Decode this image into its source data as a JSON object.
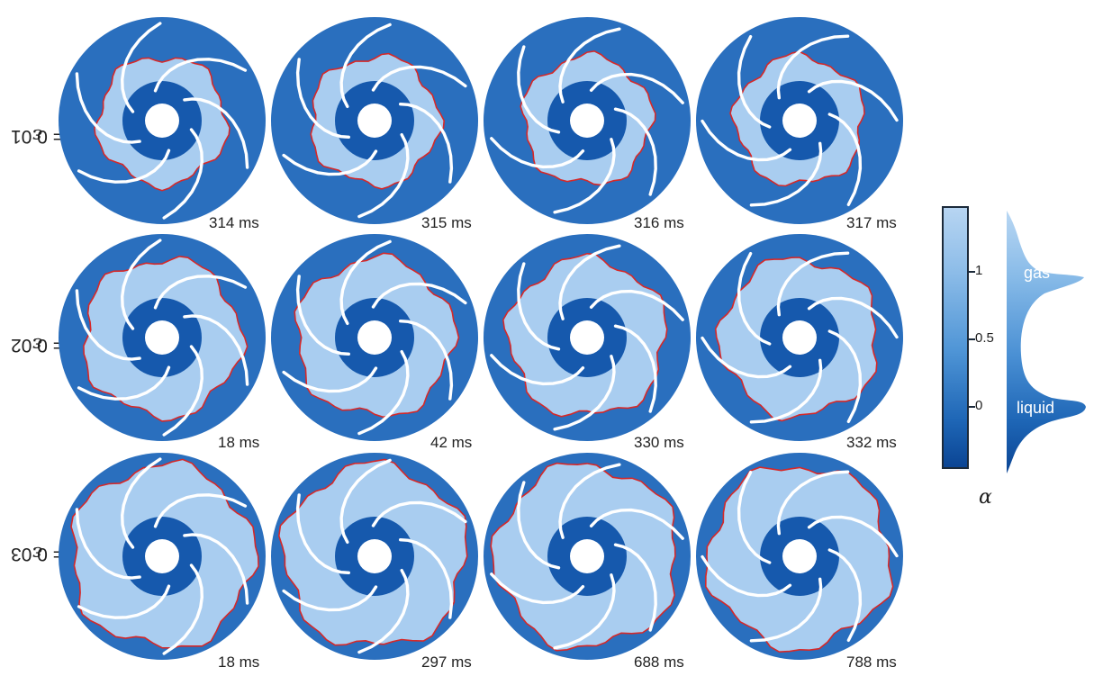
{
  "colors": {
    "background_fluid": "#2a6fbe",
    "gas_region": "#a9cdf0",
    "liquid_core": "#1659ad",
    "contour": "#d62828",
    "blade": "#ffffff"
  },
  "rows": [
    {
      "epsilon_symbol": "ε",
      "epsilon_text": " = 0.01",
      "gas_fill_fraction": 0.62,
      "panels": [
        {
          "time": "314 ms"
        },
        {
          "time": "315 ms"
        },
        {
          "time": "316 ms"
        },
        {
          "time": "317 ms"
        }
      ]
    },
    {
      "epsilon_symbol": "ε",
      "epsilon_text": " = 0.02",
      "gas_fill_fraction": 0.76,
      "panels": [
        {
          "time": "18 ms"
        },
        {
          "time": "42 ms"
        },
        {
          "time": "330 ms"
        },
        {
          "time": "332 ms"
        }
      ]
    },
    {
      "epsilon_symbol": "ε",
      "epsilon_text": " = 0.03",
      "gas_fill_fraction": 0.88,
      "panels": [
        {
          "time": "18 ms"
        },
        {
          "time": "297 ms"
        },
        {
          "time": "688 ms"
        },
        {
          "time": "788 ms"
        }
      ]
    }
  ],
  "colorbar": {
    "ticks": [
      "1",
      "0.5",
      "0"
    ],
    "symbol": "α"
  },
  "distribution": {
    "labels": [
      "gas",
      "liquid"
    ]
  }
}
